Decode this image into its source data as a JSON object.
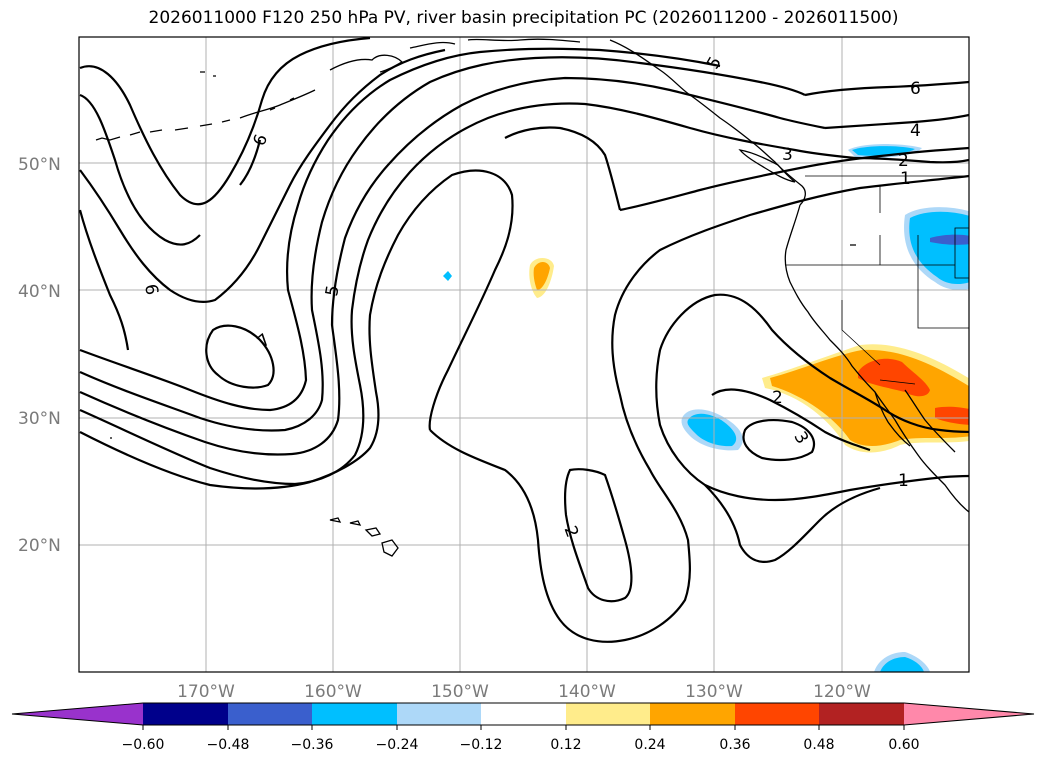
{
  "title": "2026011000 F120 250 hPa PV, river basin precipitation PC (2026011200 - 2026011500)",
  "map": {
    "lon_range": [
      -180,
      -110
    ],
    "lat_range": [
      10,
      60
    ],
    "lat_ticks": [
      {
        "value": 50,
        "label": "50°N"
      },
      {
        "value": 40,
        "label": "40°N"
      },
      {
        "value": 30,
        "label": "30°N"
      },
      {
        "value": 20,
        "label": "20°N"
      }
    ],
    "lon_ticks": [
      {
        "value": -170,
        "label": "170°W"
      },
      {
        "value": -160,
        "label": "160°W"
      },
      {
        "value": -150,
        "label": "150°W"
      },
      {
        "value": -140,
        "label": "140°W"
      },
      {
        "value": -130,
        "label": "130°W"
      },
      {
        "value": -120,
        "label": "120°W"
      }
    ],
    "contour_labels": [
      "6",
      "6",
      "7",
      "5",
      "5",
      "6",
      "4",
      "3",
      "2",
      "1",
      "2",
      "3",
      "2",
      "1"
    ]
  },
  "colorbar": {
    "colors": [
      "#9932cc",
      "#00008b",
      "#3a5fcd",
      "#00bfff",
      "#add8f8",
      "#ffffff",
      "#ffec8b",
      "#ffa500",
      "#ff4500",
      "#b22222",
      "#ff88aa"
    ],
    "ticks": [
      "−0.60",
      "−0.48",
      "−0.36",
      "−0.24",
      "−0.12",
      "0.12",
      "0.24",
      "0.36",
      "0.48",
      "0.60"
    ]
  }
}
